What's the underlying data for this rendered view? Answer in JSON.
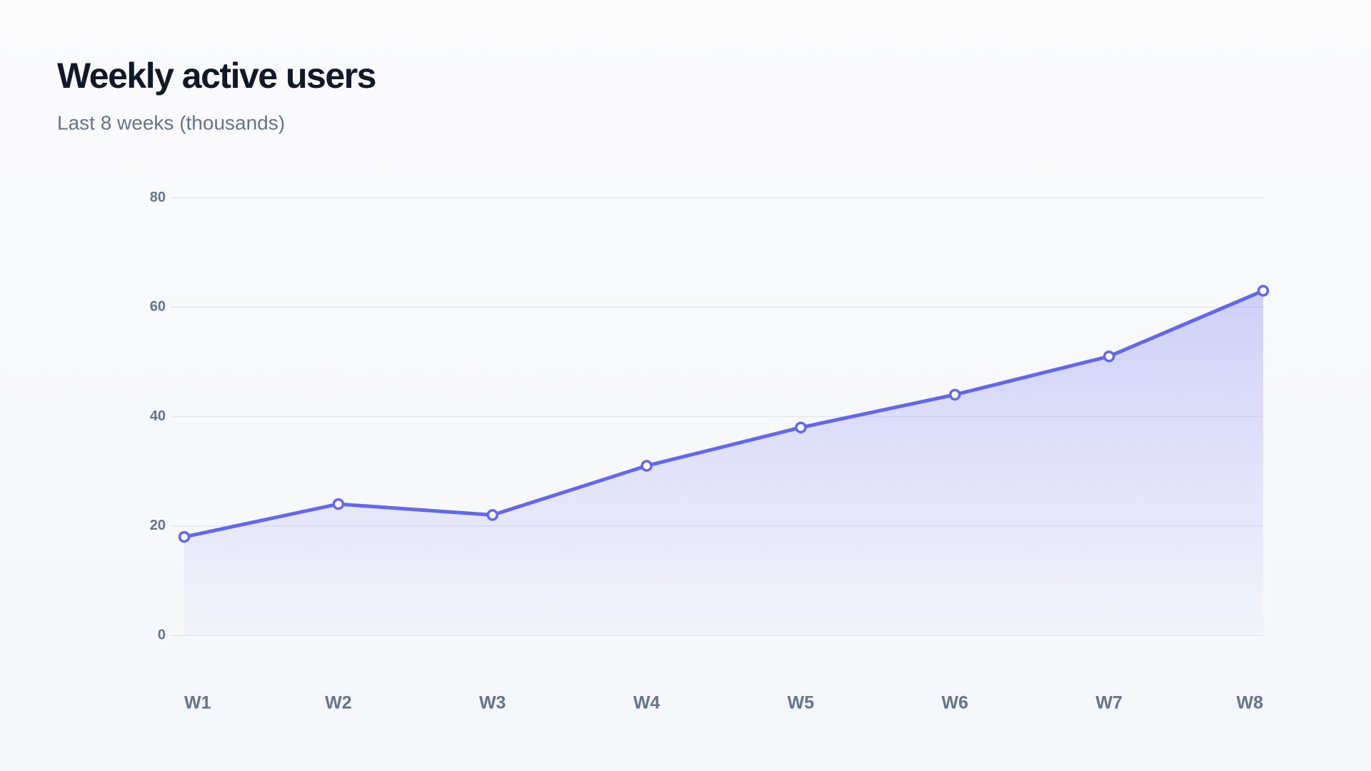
{
  "chart_data": {
    "type": "area",
    "title": "Weekly active users",
    "subtitle": "Last 8 weeks (thousands)",
    "categories": [
      "W1",
      "W2",
      "W3",
      "W4",
      "W5",
      "W6",
      "W7",
      "W8"
    ],
    "values": [
      18,
      24,
      22,
      31,
      38,
      44,
      51,
      63
    ],
    "color": "#6366f1",
    "ylim": [
      0,
      80
    ],
    "yticks": [
      0,
      20,
      40,
      60,
      80
    ],
    "grid": true
  }
}
